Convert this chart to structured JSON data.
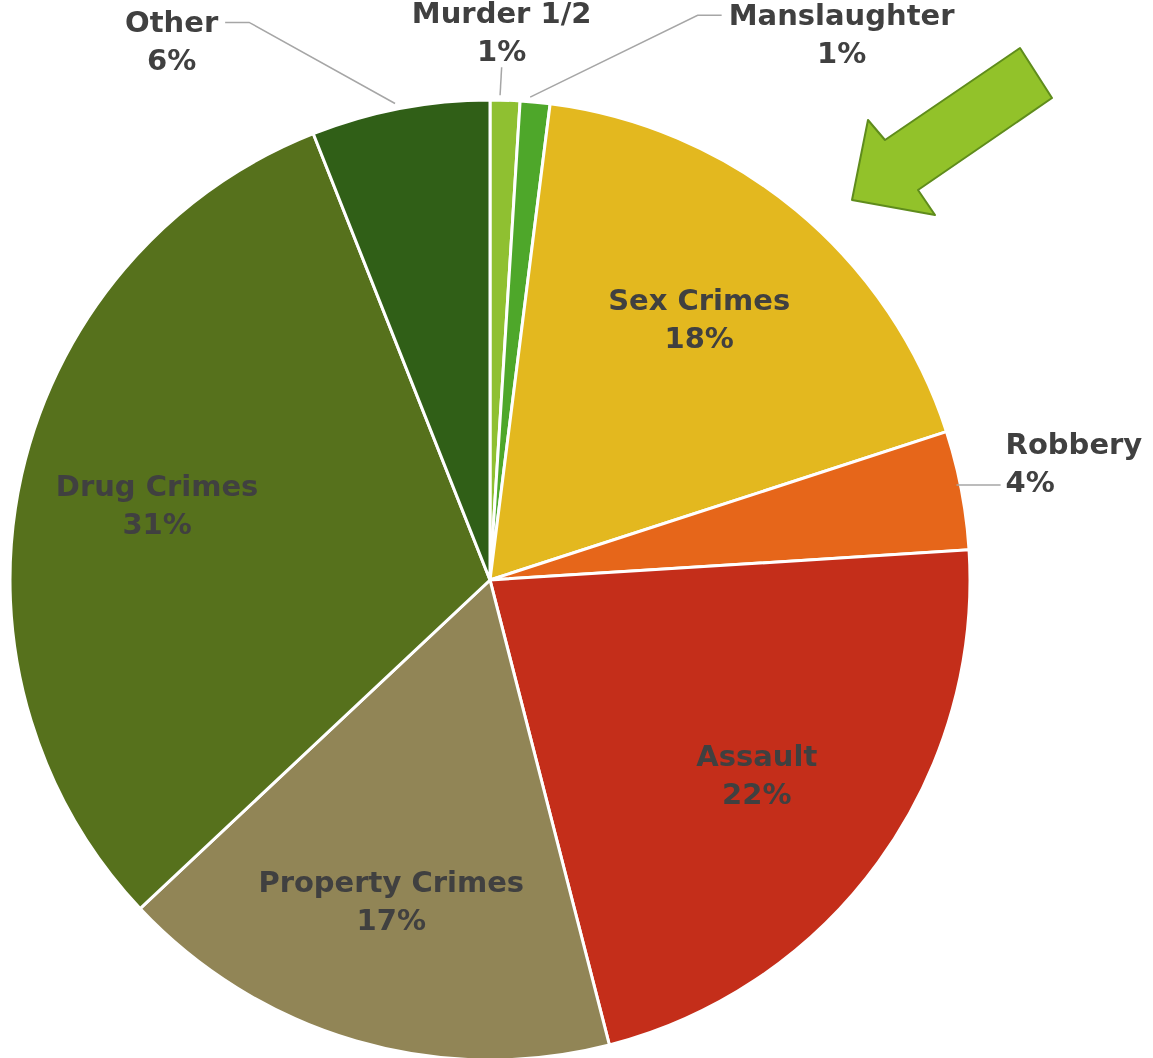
{
  "chart_data": {
    "type": "pie",
    "categories": [
      "Murder 1/2",
      "Manslaughter",
      "Sex Crimes",
      "Robbery",
      "Assault",
      "Property Crimes",
      "Drug Crimes",
      "Other"
    ],
    "values": [
      1,
      1,
      18,
      4,
      22,
      17,
      31,
      6
    ],
    "value_labels": [
      "1%",
      "1%",
      "18%",
      "4%",
      "22%",
      "17%",
      "31%",
      "6%"
    ],
    "colors": [
      "#8fc031",
      "#4ea72a",
      "#e3b81f",
      "#e6661a",
      "#c42e1a",
      "#918556",
      "#56711c",
      "#305f17"
    ]
  }
}
